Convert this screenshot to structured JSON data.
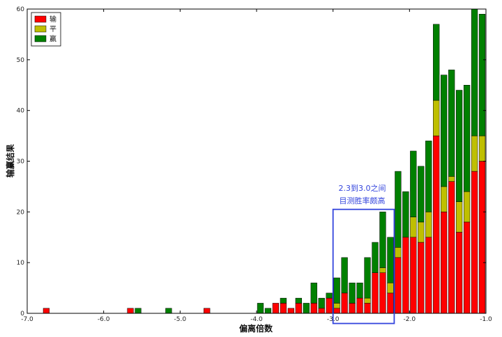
{
  "chart_data": {
    "type": "bar",
    "stacked": true,
    "title": "",
    "xlabel": "偏离倍数",
    "ylabel": "输赢结果",
    "xlim": [
      -7.0,
      -1.0
    ],
    "ylim": [
      0,
      60
    ],
    "bar_width": 0.08,
    "xticks": [
      -7.0,
      -6.0,
      -5.0,
      -4.0,
      -3.0,
      -2.0,
      -1.0
    ],
    "xtick_labels": [
      "-7.0",
      "-6.0",
      "-5.0",
      "-4.0",
      "-3.0",
      "-2.0",
      "-1.0"
    ],
    "yticks": [
      0,
      10,
      20,
      30,
      40,
      50,
      60
    ],
    "ytick_labels": [
      "0",
      "10",
      "20",
      "30",
      "40",
      "50",
      "60"
    ],
    "grid": false,
    "legend_position": "top-left",
    "series": [
      {
        "name": "输",
        "color": "#ff0000"
      },
      {
        "name": "平",
        "color": "#bfbf00"
      },
      {
        "name": "赢",
        "color": "#008000"
      }
    ],
    "x": [
      -6.75,
      -5.65,
      -5.55,
      -5.15,
      -4.65,
      -3.95,
      -3.85,
      -3.75,
      -3.65,
      -3.55,
      -3.45,
      -3.35,
      -3.25,
      -3.15,
      -3.05,
      -2.95,
      -2.85,
      -2.75,
      -2.65,
      -2.55,
      -2.45,
      -2.35,
      -2.25,
      -2.15,
      -2.05,
      -1.95,
      -1.85,
      -1.75,
      -1.65,
      -1.55,
      -1.45,
      -1.35,
      -1.25,
      -1.15,
      -1.05
    ],
    "stacks": [
      [
        1,
        0,
        0
      ],
      [
        1,
        0,
        0
      ],
      [
        0,
        0,
        1
      ],
      [
        0,
        0,
        1
      ],
      [
        1,
        0,
        0
      ],
      [
        0,
        0,
        2
      ],
      [
        0,
        0,
        1
      ],
      [
        2,
        0,
        0
      ],
      [
        2,
        0,
        1
      ],
      [
        1,
        0,
        0
      ],
      [
        2,
        0,
        1
      ],
      [
        0,
        0,
        2
      ],
      [
        2,
        0,
        4
      ],
      [
        1,
        0,
        2
      ],
      [
        3,
        0,
        1
      ],
      [
        1,
        1,
        5
      ],
      [
        4,
        0,
        7
      ],
      [
        2,
        0,
        4
      ],
      [
        3,
        0,
        3
      ],
      [
        2,
        1,
        8
      ],
      [
        8,
        0,
        6
      ],
      [
        8,
        1,
        11
      ],
      [
        4,
        2,
        9
      ],
      [
        11,
        2,
        15
      ],
      [
        15,
        0,
        9
      ],
      [
        15,
        4,
        13
      ],
      [
        14,
        4,
        11
      ],
      [
        15,
        5,
        14
      ],
      [
        35,
        7,
        15
      ],
      [
        20,
        5,
        22
      ],
      [
        26,
        1,
        21
      ],
      [
        16,
        6,
        22
      ],
      [
        18,
        6,
        21
      ],
      [
        28,
        7,
        25
      ],
      [
        30,
        5,
        24
      ]
    ],
    "annotations": [
      {
        "lines": [
          "2.3到3.0之间",
          "目测胜率颇高"
        ],
        "box_x": [
          -3.0,
          -2.2
        ],
        "box_y": [
          -2,
          20.5
        ]
      }
    ]
  }
}
